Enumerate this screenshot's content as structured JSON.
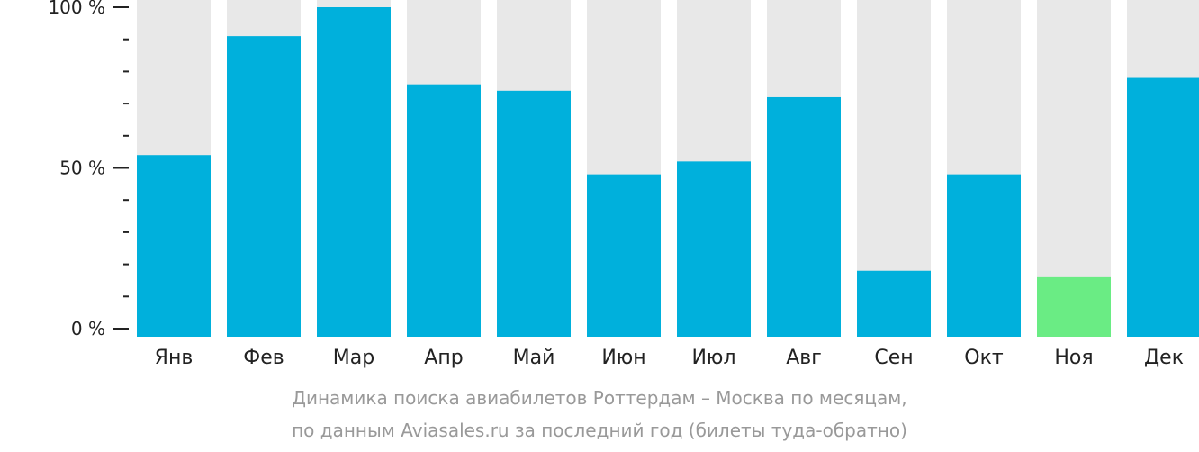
{
  "chart_data": {
    "type": "bar",
    "categories": [
      "Янв",
      "Фев",
      "Мар",
      "Апр",
      "Май",
      "Июн",
      "Июл",
      "Авг",
      "Сен",
      "Окт",
      "Ноя",
      "Дек"
    ],
    "values": [
      54,
      91,
      100,
      76,
      74,
      48,
      52,
      72,
      18,
      48,
      16,
      78
    ],
    "ylim": [
      0,
      100
    ],
    "yticks": [
      {
        "value": 100,
        "label": "100 %"
      },
      {
        "value": 50,
        "label": "50 %"
      },
      {
        "value": 0,
        "label": "0 %"
      }
    ],
    "minor_tick_step": 10,
    "highlight_category": "Ноя",
    "colors": {
      "bar": "#00b0dc",
      "highlight": "#6aec84",
      "background_column": "#e8e8e8",
      "axis": "#222222"
    }
  },
  "caption": {
    "line1": "Динамика поиска авиабилетов Роттердам – Москва по месяцам,",
    "line2": "по данным Aviasales.ru за последний год (билеты туда-обратно)"
  }
}
